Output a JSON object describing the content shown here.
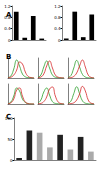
{
  "chart_data": [
    {
      "type": "bar",
      "title": "A",
      "categories": [
        null,
        null,
        null,
        null
      ],
      "values": [
        1.0,
        0.08,
        0.85,
        0.05
      ],
      "color": "#000000",
      "ylim": [
        0,
        1.2
      ],
      "yticks": [
        0,
        0.4,
        0.8,
        1.2
      ],
      "grid": false
    },
    {
      "type": "bar",
      "categories": [
        null,
        null,
        null,
        null
      ],
      "values": [
        0.05,
        1.0,
        0.1,
        0.9
      ],
      "color": "#000000",
      "ylim": [
        0,
        1.2
      ],
      "yticks": [
        0,
        0.4,
        0.8,
        1.2
      ],
      "grid": false
    },
    {
      "type": "line",
      "title": "B",
      "x": [
        0,
        1,
        2,
        3,
        4,
        5,
        6,
        7,
        8,
        9
      ],
      "xlim": [
        0,
        9
      ],
      "ylim": [
        0,
        100
      ],
      "tick_labels": false,
      "grid": false,
      "series": [
        {
          "color": "#2ca02c",
          "values": [
            2,
            10,
            45,
            90,
            60,
            20,
            6,
            2,
            1,
            0
          ]
        },
        {
          "color": "#d62728",
          "values": [
            1,
            4,
            15,
            40,
            80,
            70,
            30,
            8,
            2,
            0
          ]
        }
      ]
    },
    {
      "type": "line",
      "x": [
        0,
        1,
        2,
        3,
        4,
        5,
        6,
        7,
        8,
        9
      ],
      "xlim": [
        0,
        9
      ],
      "ylim": [
        0,
        100
      ],
      "tick_labels": false,
      "grid": false,
      "series": [
        {
          "color": "#2ca02c",
          "values": [
            3,
            15,
            55,
            85,
            50,
            15,
            4,
            1,
            0,
            0
          ]
        },
        {
          "color": "#d62728",
          "values": [
            1,
            5,
            20,
            60,
            85,
            50,
            15,
            4,
            1,
            0
          ]
        }
      ]
    },
    {
      "type": "line",
      "x": [
        0,
        1,
        2,
        3,
        4,
        5,
        6,
        7,
        8,
        9
      ],
      "xlim": [
        0,
        9
      ],
      "ylim": [
        0,
        100
      ],
      "tick_labels": false,
      "grid": false,
      "series": [
        {
          "color": "#2ca02c",
          "values": [
            2,
            12,
            50,
            88,
            55,
            18,
            5,
            1,
            0,
            0
          ]
        },
        {
          "color": "#d62728",
          "values": [
            0,
            2,
            8,
            25,
            60,
            90,
            55,
            15,
            3,
            0
          ]
        }
      ]
    },
    {
      "type": "line",
      "x": [
        0,
        1,
        2,
        3,
        4,
        5,
        6,
        7,
        8,
        9
      ],
      "xlim": [
        0,
        9
      ],
      "ylim": [
        0,
        100
      ],
      "tick_labels": false,
      "grid": false,
      "series": [
        {
          "color": "#2ca02c",
          "values": [
            2,
            10,
            40,
            80,
            65,
            25,
            8,
            2,
            0,
            0
          ]
        },
        {
          "color": "#d62728",
          "values": [
            1,
            6,
            25,
            70,
            80,
            40,
            10,
            2,
            0,
            0
          ]
        }
      ]
    },
    {
      "type": "line",
      "x": [
        0,
        1,
        2,
        3,
        4,
        5,
        6,
        7,
        8,
        9
      ],
      "xlim": [
        0,
        9
      ],
      "ylim": [
        0,
        100
      ],
      "tick_labels": false,
      "grid": false,
      "series": [
        {
          "color": "#2ca02c",
          "values": [
            4,
            20,
            60,
            80,
            45,
            12,
            3,
            1,
            0,
            0
          ]
        },
        {
          "color": "#d62728",
          "values": [
            1,
            3,
            12,
            35,
            75,
            85,
            40,
            10,
            2,
            0
          ]
        }
      ]
    },
    {
      "type": "line",
      "x": [
        0,
        1,
        2,
        3,
        4,
        5,
        6,
        7,
        8,
        9
      ],
      "xlim": [
        0,
        9
      ],
      "ylim": [
        0,
        100
      ],
      "tick_labels": false,
      "grid": false,
      "series": [
        {
          "color": "#2ca02c",
          "values": [
            3,
            14,
            52,
            86,
            52,
            16,
            4,
            1,
            0,
            0
          ]
        },
        {
          "color": "#d62728",
          "values": [
            0,
            2,
            6,
            20,
            50,
            88,
            65,
            20,
            4,
            1
          ]
        }
      ]
    },
    {
      "type": "bar",
      "title": "C",
      "categories": [
        null,
        null,
        null,
        null,
        null,
        null,
        null,
        null
      ],
      "values": [
        5,
        70,
        65,
        30,
        60,
        25,
        55,
        20
      ],
      "colors": [
        "#222222",
        "#222222",
        "#aaaaaa",
        "#aaaaaa",
        "#222222",
        "#aaaaaa",
        "#222222",
        "#aaaaaa"
      ],
      "ylim": [
        0,
        100
      ],
      "yticks": [
        0,
        50,
        100
      ],
      "grid": false
    }
  ]
}
